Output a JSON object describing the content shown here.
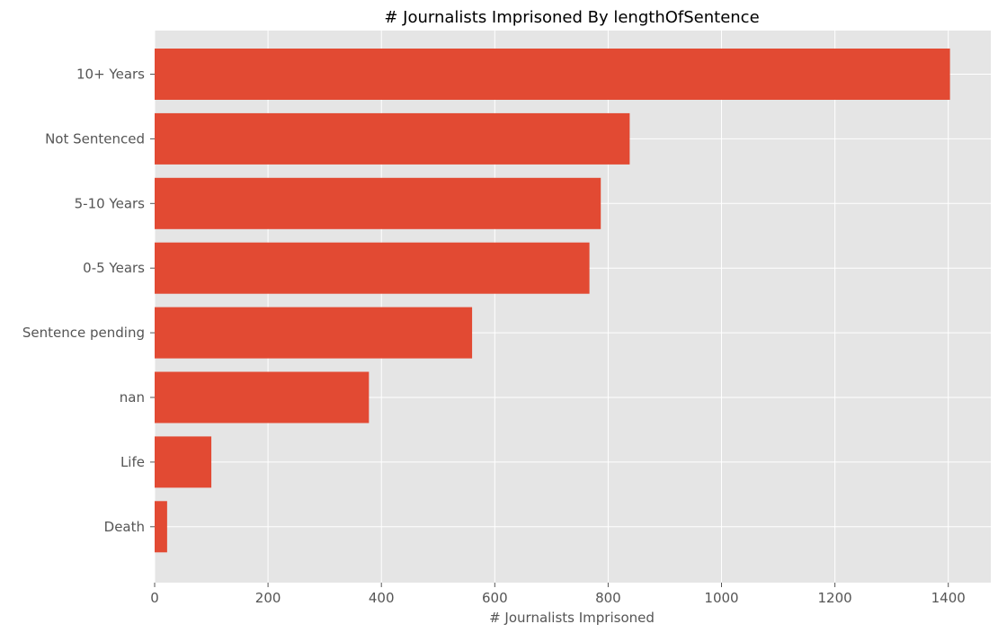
{
  "chart_data": {
    "type": "bar",
    "orientation": "horizontal",
    "title": "# Journalists Imprisoned By lengthOfSentence",
    "xlabel": "# Journalists Imprisoned",
    "ylabel": "",
    "categories": [
      "10+ Years",
      "Not Sentenced",
      "5-10 Years",
      "0-5 Years",
      "Sentence pending",
      "nan",
      "Life",
      "Death"
    ],
    "values": [
      1403,
      838,
      787,
      767,
      560,
      378,
      100,
      22
    ],
    "xlim": [
      0,
      1475
    ],
    "xticks": [
      0,
      200,
      400,
      600,
      800,
      1000,
      1200,
      1400
    ],
    "grid": true,
    "colors": {
      "bar": "#e24a33",
      "background": "#e5e5e5",
      "grid": "#ffffff"
    }
  }
}
